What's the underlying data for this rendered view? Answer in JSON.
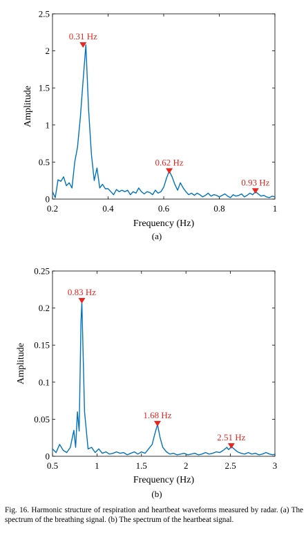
{
  "chart_data": [
    {
      "type": "line",
      "xlabel": "Frequency (Hz)",
      "ylabel": "Amplitude",
      "sublabel": "(a)",
      "xlim": [
        0.2,
        1.0
      ],
      "ylim": [
        0,
        2.5
      ],
      "xticks": [
        0.2,
        0.4,
        0.6,
        0.8,
        1.0
      ],
      "xtick_labels": [
        "0.2",
        "0.4",
        "0.6",
        "0.8",
        "1"
      ],
      "yticks": [
        0,
        0.5,
        1,
        1.5,
        2,
        2.5
      ],
      "ytick_labels": [
        "0",
        "0.5",
        "1",
        "1.5",
        "2",
        "2.5"
      ],
      "series": [
        {
          "color": "#0072bd",
          "x": [
            0.2,
            0.21,
            0.22,
            0.23,
            0.24,
            0.25,
            0.26,
            0.27,
            0.28,
            0.29,
            0.3,
            0.31,
            0.32,
            0.33,
            0.34,
            0.35,
            0.36,
            0.37,
            0.38,
            0.39,
            0.4,
            0.41,
            0.42,
            0.43,
            0.44,
            0.45,
            0.46,
            0.47,
            0.48,
            0.49,
            0.5,
            0.51,
            0.52,
            0.53,
            0.54,
            0.55,
            0.56,
            0.57,
            0.58,
            0.59,
            0.6,
            0.61,
            0.62,
            0.63,
            0.64,
            0.65,
            0.66,
            0.67,
            0.68,
            0.69,
            0.7,
            0.71,
            0.72,
            0.73,
            0.74,
            0.75,
            0.76,
            0.77,
            0.78,
            0.79,
            0.8,
            0.81,
            0.82,
            0.83,
            0.84,
            0.85,
            0.86,
            0.87,
            0.88,
            0.89,
            0.9,
            0.91,
            0.92,
            0.93,
            0.94,
            0.95,
            0.96,
            0.97,
            0.98,
            0.99,
            1.0
          ],
          "y": [
            0.1,
            0.02,
            0.26,
            0.24,
            0.3,
            0.18,
            0.22,
            0.15,
            0.5,
            0.7,
            1.1,
            1.6,
            2.08,
            1.2,
            0.6,
            0.25,
            0.42,
            0.15,
            0.2,
            0.14,
            0.14,
            0.1,
            0.06,
            0.13,
            0.1,
            0.12,
            0.1,
            0.12,
            0.06,
            0.1,
            0.08,
            0.15,
            0.1,
            0.07,
            0.1,
            0.09,
            0.06,
            0.12,
            0.08,
            0.1,
            0.16,
            0.28,
            0.38,
            0.3,
            0.2,
            0.12,
            0.22,
            0.15,
            0.1,
            0.06,
            0.08,
            0.05,
            0.08,
            0.06,
            0.03,
            0.05,
            0.08,
            0.04,
            0.06,
            0.05,
            0.03,
            0.05,
            0.07,
            0.04,
            0.02,
            0.06,
            0.04,
            0.05,
            0.07,
            0.03,
            0.05,
            0.08,
            0.06,
            0.1,
            0.07,
            0.04,
            0.05,
            0.03,
            0.02,
            0.04,
            0.03
          ]
        }
      ],
      "annotations": [
        {
          "x": 0.31,
          "y": 2.07,
          "text": "0.31 Hz"
        },
        {
          "x": 0.62,
          "y": 0.37,
          "text": "0.62 Hz"
        },
        {
          "x": 0.93,
          "y": 0.1,
          "text": "0.93 Hz"
        }
      ],
      "marker_color": "#e8251f"
    },
    {
      "type": "line",
      "xlabel": "Frequency (Hz)",
      "ylabel": "Amplitude",
      "sublabel": "(b)",
      "xlim": [
        0.5,
        3.0
      ],
      "ylim": [
        0,
        0.25
      ],
      "xticks": [
        0.5,
        1.0,
        1.5,
        2.0,
        2.5,
        3.0
      ],
      "xtick_labels": [
        "0.5",
        "1",
        "1.5",
        "2",
        "2.5",
        "3"
      ],
      "yticks": [
        0,
        0.05,
        0.1,
        0.15,
        0.2,
        0.25
      ],
      "ytick_labels": [
        "0",
        "0.05",
        "0.1",
        "0.15",
        "0.2",
        "0.25"
      ],
      "series": [
        {
          "color": "#0072bd",
          "x": [
            0.5,
            0.54,
            0.58,
            0.62,
            0.66,
            0.7,
            0.74,
            0.76,
            0.78,
            0.8,
            0.82,
            0.83,
            0.86,
            0.9,
            0.94,
            0.98,
            1.02,
            1.06,
            1.1,
            1.14,
            1.18,
            1.22,
            1.26,
            1.3,
            1.34,
            1.38,
            1.42,
            1.46,
            1.5,
            1.54,
            1.58,
            1.62,
            1.65,
            1.68,
            1.71,
            1.74,
            1.78,
            1.82,
            1.86,
            1.9,
            1.94,
            1.98,
            2.02,
            2.06,
            2.1,
            2.14,
            2.18,
            2.22,
            2.26,
            2.3,
            2.34,
            2.38,
            2.42,
            2.46,
            2.48,
            2.51,
            2.54,
            2.58,
            2.62,
            2.66,
            2.7,
            2.74,
            2.78,
            2.82,
            2.86,
            2.9,
            2.94,
            2.98,
            3.0
          ],
          "y": [
            0.01,
            0.005,
            0.016,
            0.008,
            0.005,
            0.012,
            0.035,
            0.012,
            0.06,
            0.034,
            0.18,
            0.208,
            0.06,
            0.01,
            0.012,
            0.005,
            0.01,
            0.004,
            0.006,
            0.003,
            0.004,
            0.006,
            0.004,
            0.005,
            0.002,
            0.004,
            0.006,
            0.003,
            0.006,
            0.004,
            0.01,
            0.016,
            0.03,
            0.043,
            0.025,
            0.012,
            0.006,
            0.003,
            0.004,
            0.002,
            0.003,
            0.004,
            0.002,
            0.003,
            0.004,
            0.002,
            0.003,
            0.005,
            0.003,
            0.004,
            0.006,
            0.005,
            0.008,
            0.012,
            0.009,
            0.013,
            0.01,
            0.006,
            0.004,
            0.003,
            0.005,
            0.003,
            0.004,
            0.002,
            0.003,
            0.005,
            0.003,
            0.002,
            0.003
          ]
        }
      ],
      "annotations": [
        {
          "x": 0.83,
          "y": 0.209,
          "text": "0.83 Hz"
        },
        {
          "x": 1.68,
          "y": 0.043,
          "text": "1.68 Hz"
        },
        {
          "x": 2.51,
          "y": 0.013,
          "text": "2.51 Hz"
        }
      ],
      "marker_color": "#e8251f"
    }
  ],
  "caption": "Fig. 16.  Harmonic structure of respiration and heartbeat waveforms measured by radar. (a) The spectrum of the breathing signal. (b) The spectrum of the heartbeat signal."
}
